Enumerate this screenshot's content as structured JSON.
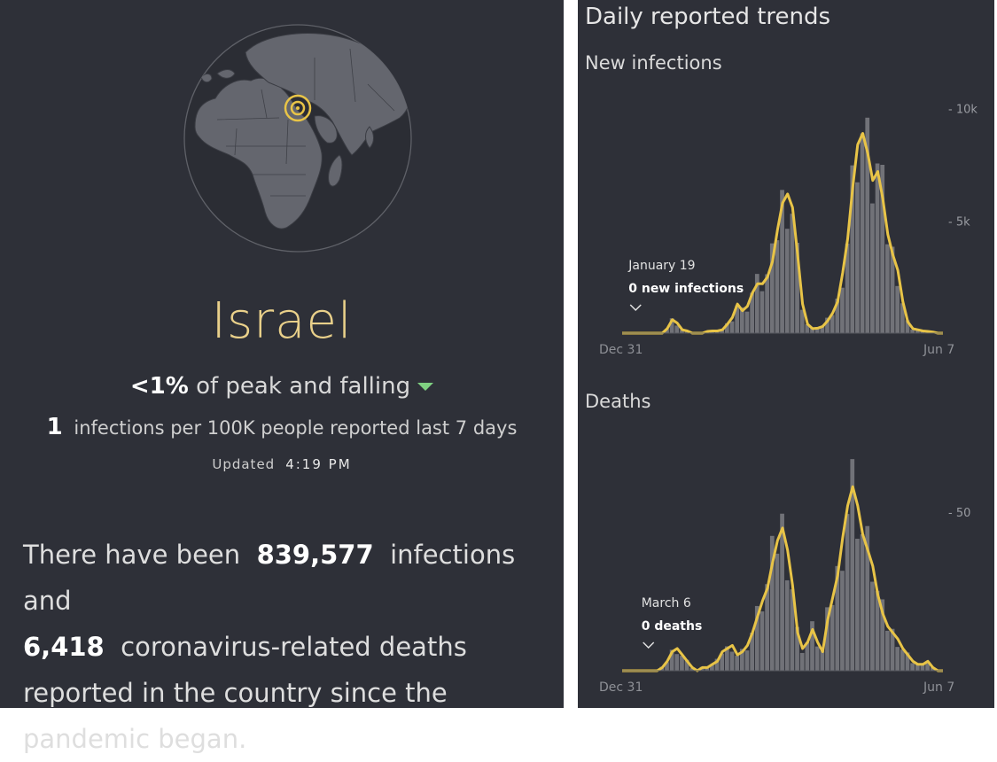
{
  "country": {
    "name": "Israel",
    "peak_value": "<1%",
    "peak_text": "of peak and falling",
    "rate_value": "1",
    "rate_text": "infections per 100K people reported last 7 days",
    "updated_label": "Updated",
    "updated_time": "4:19 PM"
  },
  "summary": {
    "part1": "There have been",
    "infections": "839,577",
    "part2": "infections and",
    "deaths": "6,418",
    "part3": "coronavirus-related deaths reported in the country since the pandemic began."
  },
  "trends": {
    "title": "Daily reported trends",
    "infections_title": "New infections",
    "deaths_title": "Deaths"
  },
  "colors": {
    "background": "#2e3038",
    "accent": "#e8c447",
    "bars": "#7c7e84",
    "falling": "#7fd081"
  },
  "chart_data": [
    {
      "type": "area",
      "title": "New infections",
      "x_start_label": "Dec 31",
      "x_end_label": "Jun 7",
      "y_ticks": [
        "10k",
        "5k"
      ],
      "y_tick_values": [
        10000,
        5000
      ],
      "ylim": [
        0,
        10500
      ],
      "annotation": {
        "date": "January 19",
        "text": "0 new infections",
        "x": 0.02
      },
      "series": [
        {
          "values": [
            0,
            0,
            0,
            0,
            0,
            0,
            0,
            0,
            0,
            200,
            600,
            450,
            150,
            100,
            0,
            0,
            0,
            80,
            100,
            100,
            150,
            400,
            700,
            1300,
            1000,
            1200,
            1800,
            2200,
            2200,
            2500,
            3200,
            4600,
            5800,
            6200,
            5600,
            3500,
            1300,
            400,
            200,
            220,
            300,
            550,
            900,
            1400,
            2700,
            4200,
            6500,
            8400,
            8900,
            8000,
            6800,
            7200,
            6000,
            4400,
            3500,
            2800,
            1400,
            500,
            200,
            150,
            100,
            80,
            50,
            0,
            0
          ]
        }
      ]
    },
    {
      "type": "area",
      "title": "Deaths",
      "x_start_label": "Dec 31",
      "x_end_label": "Jun 7",
      "y_ticks": [
        "50"
      ],
      "y_tick_values": [
        50
      ],
      "ylim": [
        0,
        74
      ],
      "annotation": {
        "date": "March 6",
        "text": "0 deaths",
        "x": 0.06
      },
      "series": [
        {
          "values": [
            0,
            0,
            0,
            0,
            0,
            0,
            0,
            0,
            1,
            3,
            6,
            7,
            5,
            3,
            1,
            0,
            1,
            1,
            2,
            3,
            6,
            7,
            8,
            5,
            6,
            8,
            12,
            17,
            22,
            26,
            34,
            41,
            45,
            38,
            27,
            12,
            7,
            9,
            13,
            9,
            6,
            16,
            23,
            30,
            42,
            52,
            58,
            52,
            43,
            38,
            33,
            24,
            18,
            14,
            12,
            10,
            7,
            5,
            3,
            2,
            2,
            3,
            1,
            0,
            0
          ]
        }
      ]
    }
  ]
}
